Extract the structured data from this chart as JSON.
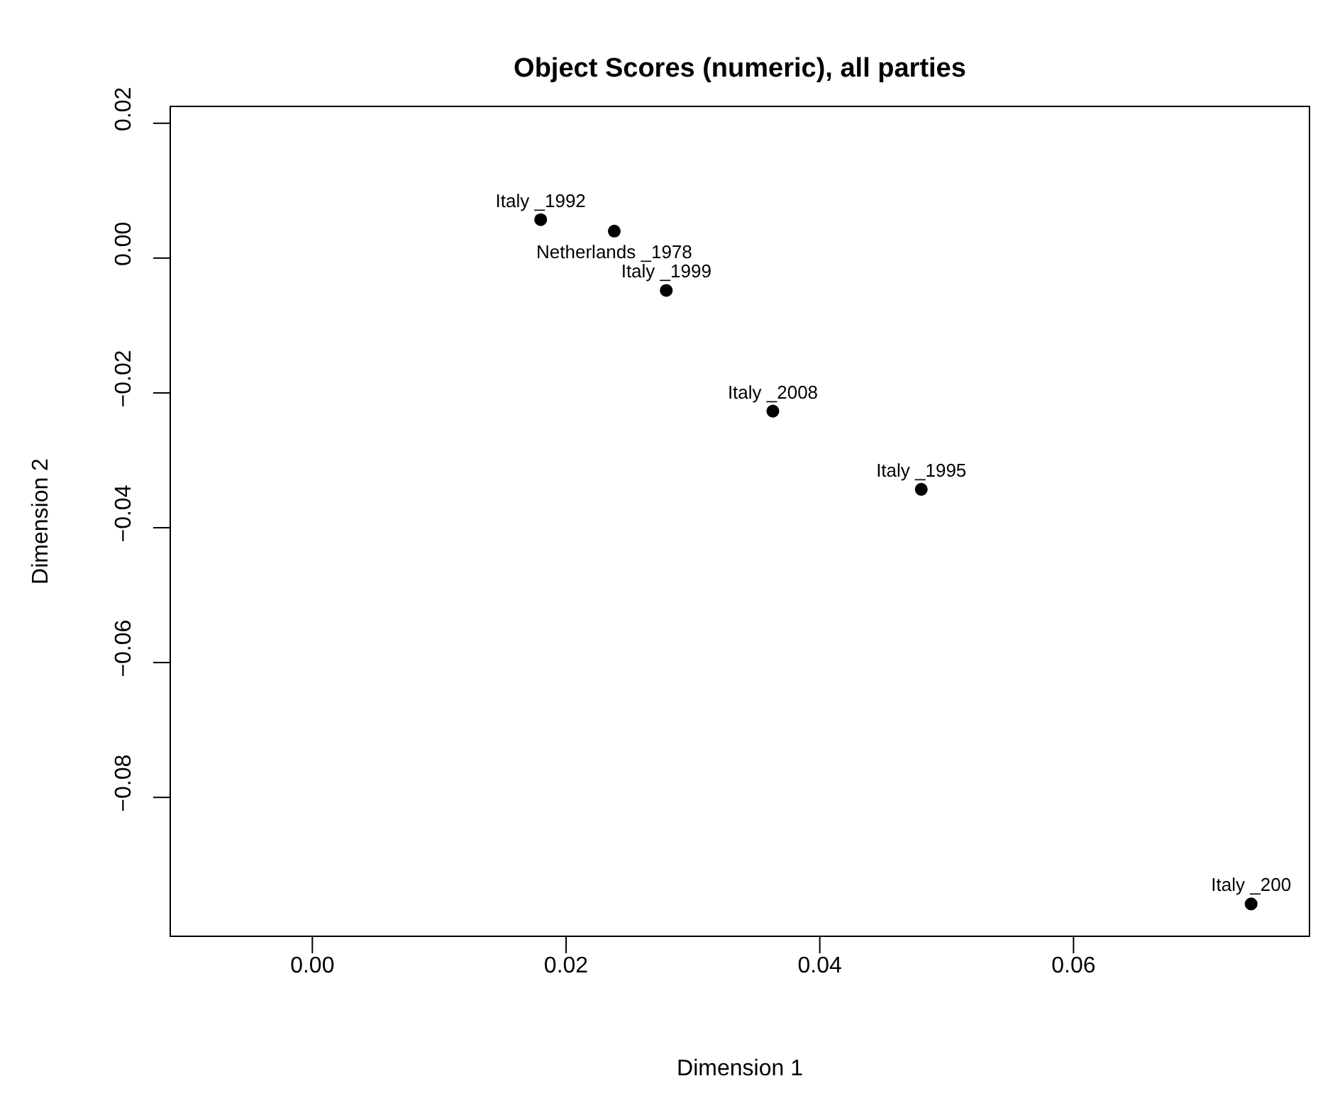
{
  "chart_data": {
    "type": "scatter",
    "title": "Object Scores (numeric), all parties",
    "xlabel": "Dimension 1",
    "ylabel": "Dimension 2",
    "x": [
      0.018,
      0.0238,
      0.0279,
      0.0363,
      0.048,
      0.074
    ],
    "values": [
      0.0057,
      0.004,
      -0.0048,
      -0.0227,
      -0.0343,
      -0.0958
    ],
    "annotations": [
      {
        "text": "Italy _1992",
        "x": 0.018,
        "y": 0.0057
      },
      {
        "text": "Netherlands _1978",
        "x": 0.0238,
        "y": 0.004
      },
      {
        "text": "Italy _1999",
        "x": 0.0279,
        "y": -0.0048
      },
      {
        "text": "Italy _2008",
        "x": 0.0363,
        "y": -0.0227
      },
      {
        "text": "Italy _1995",
        "x": 0.048,
        "y": -0.0343
      },
      {
        "text": "Italy _200",
        "x": 0.074,
        "y": -0.0958
      }
    ],
    "color": "#000000",
    "marker": "circle",
    "xlim": [
      -0.0112,
      0.0786
    ],
    "xticks": [
      {
        "value": 0,
        "label": "0.00"
      },
      {
        "value": 0.02,
        "label": "0.02"
      },
      {
        "value": 0.04,
        "label": "0.04"
      },
      {
        "value": 0.06,
        "label": "0.06"
      }
    ],
    "ylim": [
      -0.1006,
      0.0225
    ],
    "yticks": [
      {
        "value": -0.08,
        "label": "−0.08"
      },
      {
        "value": -0.06,
        "label": "−0.06"
      },
      {
        "value": -0.04,
        "label": "−0.04"
      },
      {
        "value": -0.02,
        "label": "−0.02"
      },
      {
        "value": 0,
        "label": "0.00"
      },
      {
        "value": 0.02,
        "label": "0.02"
      }
    ],
    "grid": false
  }
}
